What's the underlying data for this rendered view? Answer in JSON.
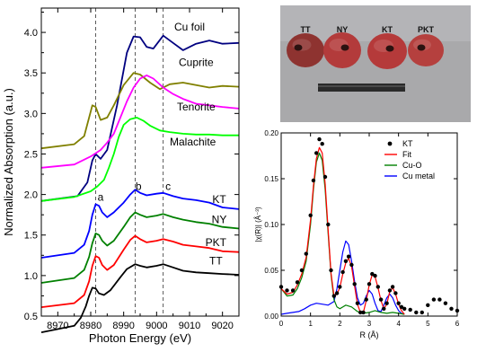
{
  "chart_data": [
    {
      "type": "line",
      "panel": "xanes",
      "xlabel": "Photon Energy (eV)",
      "ylabel": "Normalized Absorption (a.u.)",
      "xlim": [
        8965,
        9025
      ],
      "ylim": [
        0.5,
        4.3
      ],
      "xticks": [
        8970,
        8980,
        8990,
        9000,
        9010,
        9020
      ],
      "yticks": [
        0.5,
        1.0,
        1.5,
        2.0,
        2.5,
        3.0,
        3.5,
        4.0
      ],
      "ytick_labels": [
        "0.5",
        "1.0",
        "1.5",
        "2.0",
        "2.5",
        "3.0",
        "3.5",
        "4.0"
      ],
      "grid": false,
      "dashed_lines_x": [
        8981.5,
        8993.5,
        9002.0
      ],
      "annotations": [
        {
          "text": "a",
          "x": 8983.0,
          "y": 1.97
        },
        {
          "text": "b",
          "x": 8994.5,
          "y": 2.1
        },
        {
          "text": "c",
          "x": 9003.5,
          "y": 2.1
        }
      ],
      "series": [
        {
          "name": "Cu foil",
          "color": "#000080",
          "label_at": [
            9010,
            4.07
          ],
          "x": [
            8965,
            8976,
            8979,
            8980.5,
            8981.5,
            8983,
            8985,
            8988,
            8991,
            8993,
            8995,
            8997,
            8999,
            9002,
            9005,
            9008,
            9012,
            9016,
            9020,
            9025
          ],
          "y": [
            1.92,
            1.98,
            2.15,
            2.42,
            2.5,
            2.44,
            2.55,
            3.1,
            3.75,
            3.95,
            3.94,
            3.82,
            3.8,
            3.96,
            3.87,
            3.78,
            3.86,
            3.9,
            3.86,
            3.87
          ]
        },
        {
          "name": "Cuprite",
          "color": "#808000",
          "label_at": [
            9012,
            3.63
          ],
          "x": [
            8965,
            8975,
            8978,
            8979.5,
            8980.5,
            8981.5,
            8983,
            8985,
            8987,
            8990,
            8993,
            8995,
            8998,
            9001,
            9004,
            9008,
            9012,
            9016,
            9020,
            9025
          ],
          "y": [
            2.57,
            2.62,
            2.72,
            2.95,
            3.1,
            3.08,
            2.92,
            2.95,
            3.1,
            3.35,
            3.5,
            3.48,
            3.38,
            3.3,
            3.36,
            3.38,
            3.35,
            3.32,
            3.34,
            3.33
          ]
        },
        {
          "name": "Tenorite",
          "color": "#ff00ff",
          "label_at": [
            9012,
            3.08
          ],
          "x": [
            8965,
            8975,
            8980,
            8983,
            8985,
            8987,
            8989,
            8991,
            8993,
            8995,
            8997,
            8999,
            9002,
            9005,
            9008,
            9012,
            9016,
            9020,
            9025
          ],
          "y": [
            2.33,
            2.37,
            2.47,
            2.55,
            2.64,
            2.75,
            2.95,
            3.15,
            3.32,
            3.43,
            3.47,
            3.43,
            3.32,
            3.24,
            3.18,
            3.12,
            3.1,
            3.08,
            3.06
          ]
        },
        {
          "name": "Malachite",
          "color": "#00ff00",
          "label_at": [
            9011,
            2.65
          ],
          "x": [
            8965,
            8975,
            8980,
            8982,
            8984,
            8985.5,
            8987,
            8988.5,
            8990,
            8992,
            8994,
            8996,
            8998,
            9001,
            9004,
            9008,
            9012,
            9016,
            9020,
            9025
          ],
          "y": [
            1.92,
            1.97,
            2.04,
            2.1,
            2.18,
            2.33,
            2.5,
            2.71,
            2.86,
            2.93,
            2.95,
            2.91,
            2.85,
            2.79,
            2.77,
            2.75,
            2.74,
            2.74,
            2.73,
            2.73
          ]
        },
        {
          "name": "KT",
          "color": "#0000ff",
          "label_at": [
            9019,
            1.94
          ],
          "x": [
            8965,
            8975,
            8978,
            8979.5,
            8980.5,
            8981.5,
            8982.5,
            8983.5,
            8985,
            8987,
            8990,
            8992,
            8993.5,
            8995,
            8997,
            9000,
            9002,
            9005,
            9008,
            9012,
            9016,
            9020,
            9025
          ],
          "y": [
            1.22,
            1.28,
            1.38,
            1.55,
            1.75,
            1.88,
            1.86,
            1.78,
            1.72,
            1.78,
            1.9,
            2.0,
            2.06,
            2.02,
            1.99,
            2.01,
            2.02,
            1.98,
            1.95,
            1.93,
            1.9,
            1.84,
            1.82
          ]
        },
        {
          "name": "NY",
          "color": "#008000",
          "label_at": [
            9019,
            1.69
          ],
          "x": [
            8965,
            8975,
            8978,
            8979.5,
            8980.5,
            8981.5,
            8982.5,
            8983.5,
            8985,
            8987,
            8990,
            8992,
            8993.5,
            8995,
            8997,
            9000,
            9002,
            9005,
            9008,
            9012,
            9016,
            9020,
            9025
          ],
          "y": [
            0.91,
            0.97,
            1.07,
            1.23,
            1.4,
            1.52,
            1.5,
            1.43,
            1.37,
            1.43,
            1.6,
            1.72,
            1.78,
            1.75,
            1.72,
            1.74,
            1.76,
            1.72,
            1.69,
            1.66,
            1.64,
            1.6,
            1.58
          ]
        },
        {
          "name": "PKT",
          "color": "#ff0000",
          "label_at": [
            9018,
            1.41
          ],
          "x": [
            8965,
            8975,
            8978,
            8979.5,
            8980.5,
            8981.5,
            8982.5,
            8983.5,
            8985,
            8987,
            8990,
            8992,
            8993.5,
            8995,
            8997,
            9000,
            9002,
            9005,
            9008,
            9012,
            9016,
            9020,
            9025
          ],
          "y": [
            0.61,
            0.66,
            0.76,
            0.93,
            1.12,
            1.24,
            1.22,
            1.13,
            1.07,
            1.13,
            1.32,
            1.44,
            1.49,
            1.45,
            1.41,
            1.43,
            1.45,
            1.42,
            1.38,
            1.36,
            1.34,
            1.3,
            1.29
          ]
        },
        {
          "name": "TT",
          "color": "#000000",
          "label_at": [
            9018,
            1.18
          ],
          "x": [
            8965,
            8975,
            8977,
            8978.5,
            8979.5,
            8980.5,
            8981.5,
            8982.5,
            8984,
            8986,
            8989,
            8991,
            8993.5,
            8995,
            8997,
            9000,
            9002,
            9005,
            9008,
            9012,
            9016,
            9020,
            9025
          ],
          "y": [
            0.3,
            0.38,
            0.48,
            0.62,
            0.75,
            0.85,
            0.84,
            0.78,
            0.76,
            0.82,
            0.98,
            1.08,
            1.14,
            1.12,
            1.1,
            1.12,
            1.14,
            1.1,
            1.06,
            1.04,
            1.03,
            1.02,
            1.01
          ]
        }
      ]
    },
    {
      "type": "line",
      "panel": "exafs",
      "xlabel": "R (Å)",
      "ylabel": "|χ(R)| (Å⁻³)",
      "xlim": [
        0,
        6
      ],
      "ylim": [
        0,
        0.2
      ],
      "xticks": [
        0,
        1,
        2,
        3,
        4,
        5,
        6
      ],
      "yticks": [
        0.0,
        0.05,
        0.1,
        0.15,
        0.2
      ],
      "ytick_labels": [
        "0.00",
        "0.05",
        "0.10",
        "0.15",
        "0.20"
      ],
      "grid": false,
      "legend": "top-right",
      "series": [
        {
          "name": "KT",
          "color": "#000000",
          "style": "dots",
          "x": [
            0,
            0.2,
            0.4,
            0.55,
            0.7,
            0.85,
            1.0,
            1.1,
            1.2,
            1.3,
            1.4,
            1.5,
            1.6,
            1.7,
            1.8,
            1.9,
            2.0,
            2.1,
            2.2,
            2.3,
            2.4,
            2.5,
            2.6,
            2.7,
            2.8,
            2.9,
            3.0,
            3.1,
            3.2,
            3.3,
            3.4,
            3.5,
            3.6,
            3.7,
            3.8,
            3.9,
            4.0,
            4.1,
            4.2,
            4.4,
            4.6,
            4.8,
            5.0,
            5.2,
            5.4,
            5.6,
            5.8,
            6.0
          ],
          "y": [
            0.032,
            0.028,
            0.028,
            0.037,
            0.05,
            0.068,
            0.11,
            0.148,
            0.178,
            0.193,
            0.188,
            0.152,
            0.1,
            0.05,
            0.022,
            0.025,
            0.032,
            0.048,
            0.06,
            0.065,
            0.056,
            0.035,
            0.014,
            0.004,
            0.004,
            0.018,
            0.035,
            0.046,
            0.044,
            0.032,
            0.018,
            0.008,
            0.014,
            0.028,
            0.032,
            0.025,
            0.014,
            0.01,
            0.008,
            0.007,
            0.004,
            0.004,
            0.012,
            0.018,
            0.018,
            0.014,
            0.008,
            0.006
          ]
        },
        {
          "name": "Fit",
          "color": "#ff0000",
          "x": [
            0,
            0.2,
            0.4,
            0.55,
            0.7,
            0.85,
            1.0,
            1.1,
            1.2,
            1.3,
            1.4,
            1.5,
            1.6,
            1.7,
            1.8,
            1.9,
            2.0,
            2.1,
            2.2,
            2.3,
            2.4,
            2.5,
            2.6,
            2.7,
            2.8,
            2.9,
            3.0,
            3.1,
            3.2,
            3.3,
            3.4,
            3.5,
            3.6,
            3.7,
            3.8,
            3.9,
            4.0,
            4.1,
            4.2
          ],
          "y": [
            0.03,
            0.024,
            0.026,
            0.034,
            0.046,
            0.064,
            0.105,
            0.142,
            0.172,
            0.184,
            0.178,
            0.144,
            0.094,
            0.047,
            0.022,
            0.024,
            0.031,
            0.046,
            0.058,
            0.063,
            0.054,
            0.033,
            0.013,
            0.004,
            0.004,
            0.017,
            0.034,
            0.045,
            0.043,
            0.031,
            0.017,
            0.008,
            0.013,
            0.027,
            0.031,
            0.024,
            0.013,
            0.006,
            0.002
          ]
        },
        {
          "name": "Cu-O",
          "color": "#008000",
          "x": [
            0,
            0.2,
            0.4,
            0.55,
            0.7,
            0.85,
            1.0,
            1.1,
            1.2,
            1.3,
            1.4,
            1.5,
            1.6,
            1.7,
            1.8,
            1.9,
            2.0,
            2.2,
            2.4,
            2.6,
            2.8,
            3.0,
            3.2,
            3.4,
            3.6,
            3.8,
            4.0,
            4.2
          ],
          "y": [
            0.03,
            0.022,
            0.023,
            0.03,
            0.042,
            0.06,
            0.1,
            0.138,
            0.168,
            0.178,
            0.17,
            0.138,
            0.09,
            0.045,
            0.018,
            0.01,
            0.008,
            0.012,
            0.01,
            0.005,
            0.003,
            0.004,
            0.006,
            0.004,
            0.003,
            0.004,
            0.003,
            0.002
          ]
        },
        {
          "name": "Cu metal",
          "color": "#0000ff",
          "x": [
            0,
            0.2,
            0.4,
            0.6,
            0.8,
            1.0,
            1.2,
            1.4,
            1.6,
            1.8,
            1.9,
            2.0,
            2.1,
            2.2,
            2.3,
            2.4,
            2.5,
            2.6,
            2.7,
            2.8,
            2.9,
            3.0,
            3.1,
            3.2,
            3.3,
            3.4,
            3.5,
            3.6,
            3.7,
            3.8,
            3.9,
            4.0,
            4.1,
            4.2
          ],
          "y": [
            0.002,
            0.003,
            0.004,
            0.005,
            0.008,
            0.012,
            0.014,
            0.013,
            0.012,
            0.016,
            0.03,
            0.05,
            0.07,
            0.082,
            0.078,
            0.06,
            0.038,
            0.02,
            0.012,
            0.014,
            0.022,
            0.028,
            0.024,
            0.014,
            0.006,
            0.005,
            0.012,
            0.02,
            0.024,
            0.02,
            0.012,
            0.006,
            0.003,
            0.002
          ]
        }
      ]
    }
  ],
  "photo": {
    "samples": [
      "TT",
      "NY",
      "KT",
      "PKT"
    ]
  }
}
